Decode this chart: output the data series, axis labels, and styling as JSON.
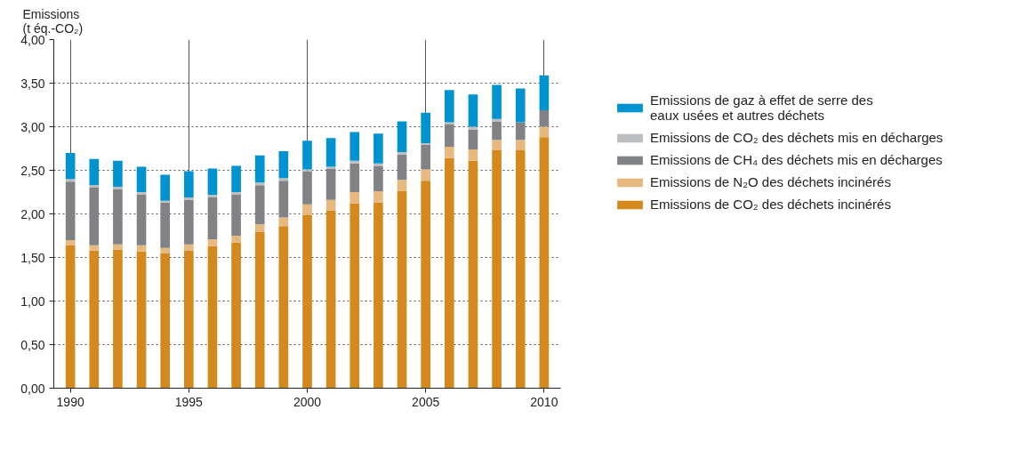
{
  "chart_data": {
    "type": "bar",
    "stacked": true,
    "ylabel": "Emissions\n(t éq.-CO₂)",
    "x": [
      1990,
      1991,
      1992,
      1993,
      1994,
      1995,
      1996,
      1997,
      1998,
      1999,
      2000,
      2001,
      2002,
      2003,
      2004,
      2005,
      2006,
      2007,
      2008,
      2009,
      2010
    ],
    "series": [
      {
        "name": "Emissions de CO₂ des déchets incinérés",
        "color": "#d3891e",
        "values": [
          1.64,
          1.58,
          1.59,
          1.57,
          1.55,
          1.58,
          1.63,
          1.67,
          1.79,
          1.86,
          1.99,
          2.04,
          2.12,
          2.13,
          2.26,
          2.38,
          2.64,
          2.61,
          2.73,
          2.73,
          2.88
        ]
      },
      {
        "name": "Emissions de N₂O des déchets incinérés",
        "color": "#e8b97e",
        "values": [
          0.06,
          0.06,
          0.06,
          0.07,
          0.06,
          0.07,
          0.08,
          0.08,
          0.09,
          0.1,
          0.12,
          0.12,
          0.13,
          0.13,
          0.13,
          0.13,
          0.13,
          0.13,
          0.12,
          0.12,
          0.12
        ]
      },
      {
        "name": "Emissions de CH₄ des déchets mis en décharges",
        "color": "#818285",
        "values": [
          0.67,
          0.66,
          0.63,
          0.58,
          0.52,
          0.51,
          0.48,
          0.47,
          0.45,
          0.42,
          0.38,
          0.36,
          0.33,
          0.29,
          0.29,
          0.28,
          0.26,
          0.23,
          0.21,
          0.2,
          0.19
        ]
      },
      {
        "name": "Emissions de CO₂ des déchets mis en décharges",
        "color": "#bcbec0",
        "values": [
          0.03,
          0.03,
          0.03,
          0.03,
          0.02,
          0.03,
          0.03,
          0.03,
          0.03,
          0.03,
          0.02,
          0.02,
          0.03,
          0.03,
          0.03,
          0.02,
          0.02,
          0.03,
          0.03,
          null,
          null
        ]
      },
      {
        "name": "Emissions de gaz à effet de serre des\neaux usées et autres déchets",
        "color": "#0093d0",
        "values": [
          0.3,
          0.3,
          0.3,
          0.29,
          0.3,
          0.3,
          0.3,
          0.3,
          0.31,
          0.31,
          0.33,
          0.33,
          0.33,
          0.34,
          0.35,
          0.35,
          0.37,
          0.37,
          0.39,
          0.39,
          0.4
        ]
      }
    ],
    "xlim": [
      1989.3,
      2010.7
    ],
    "xticks": [
      1990,
      1995,
      2000,
      2005,
      2010
    ],
    "ylim": [
      0,
      4
    ],
    "yticks": [
      {
        "value": 0,
        "label": "0,00"
      },
      {
        "value": 0.5,
        "label": "0,50"
      },
      {
        "value": 1,
        "label": "1,00"
      },
      {
        "value": 1.5,
        "label": "1,50"
      },
      {
        "value": 2,
        "label": "2,00"
      },
      {
        "value": 2.5,
        "label": "2,50"
      },
      {
        "value": 3,
        "label": "3,00"
      },
      {
        "value": 3.5,
        "label": "3,50"
      },
      {
        "value": 4,
        "label": "4,00"
      }
    ],
    "grid": true,
    "legend": "right"
  }
}
